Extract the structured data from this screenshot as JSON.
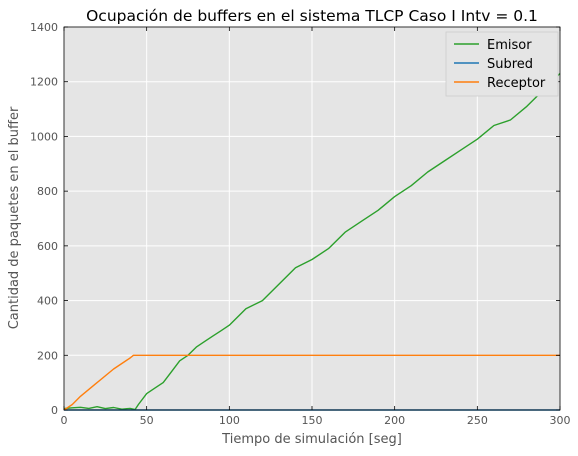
{
  "chart_data": {
    "type": "line",
    "title": "Ocupación de buffers en el sistema TLCP Caso I Intv = 0.1",
    "xlabel": "Tiempo de simulación [seg]",
    "ylabel": "Cantidad de paquetes en el buffer",
    "xlim": [
      0,
      300
    ],
    "ylim": [
      0,
      1400
    ],
    "xticks": [
      0,
      50,
      100,
      150,
      200,
      250,
      300
    ],
    "yticks": [
      0,
      200,
      400,
      600,
      800,
      1000,
      1200,
      1400
    ],
    "grid": true,
    "background": "#e5e5e5",
    "legend_position": "top-right",
    "series": [
      {
        "name": "Emisor",
        "color": "#2ca02c",
        "x": [
          0,
          5,
          10,
          15,
          20,
          25,
          30,
          35,
          40,
          43,
          45,
          50,
          55,
          60,
          65,
          70,
          75,
          80,
          85,
          90,
          95,
          100,
          110,
          120,
          130,
          140,
          150,
          160,
          170,
          180,
          190,
          200,
          210,
          220,
          230,
          240,
          250,
          260,
          270,
          280,
          290,
          300
        ],
        "y": [
          5,
          8,
          10,
          6,
          12,
          5,
          9,
          3,
          6,
          2,
          20,
          60,
          80,
          100,
          140,
          180,
          200,
          230,
          250,
          270,
          290,
          310,
          370,
          400,
          460,
          520,
          550,
          590,
          650,
          690,
          730,
          780,
          820,
          870,
          910,
          950,
          990,
          1040,
          1060,
          1110,
          1170,
          1230
        ]
      },
      {
        "name": "Subred",
        "color": "#1f77b4",
        "x": [
          0,
          300
        ],
        "y": [
          0,
          0
        ]
      },
      {
        "name": "Receptor",
        "color": "#ff7f0e",
        "x": [
          0,
          5,
          10,
          20,
          30,
          40,
          42,
          50,
          100,
          150,
          200,
          250,
          300
        ],
        "y": [
          0,
          20,
          50,
          100,
          150,
          190,
          200,
          200,
          200,
          200,
          200,
          200,
          200
        ]
      }
    ]
  }
}
